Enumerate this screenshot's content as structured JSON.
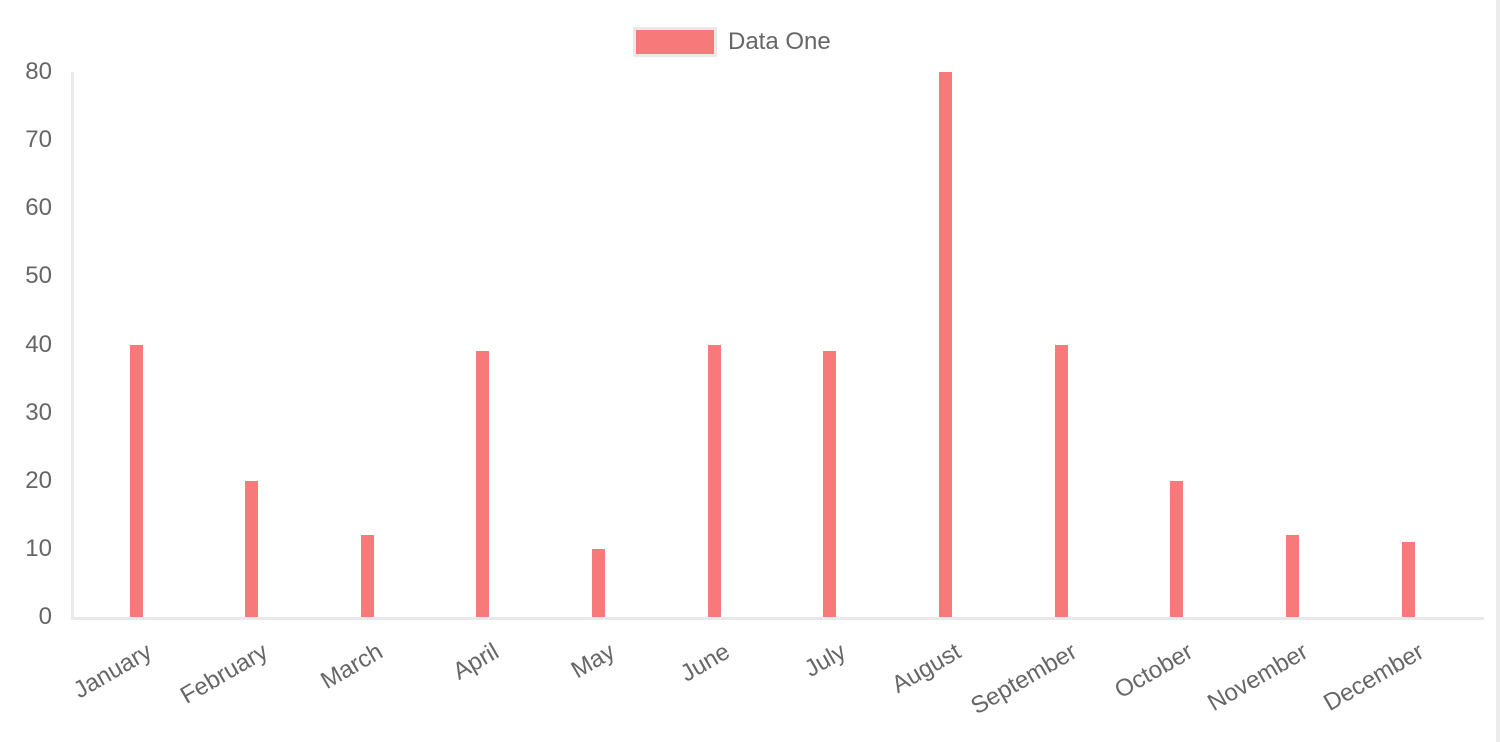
{
  "legend": {
    "label": "Data One"
  },
  "colors": {
    "bar": "#f87979",
    "tick_label": "#666666",
    "axis_line": "#e9e9e9",
    "page_right_border": "#ececec"
  },
  "chart_data": {
    "type": "bar",
    "title": "",
    "xlabel": "",
    "ylabel": "",
    "categories": [
      "January",
      "February",
      "March",
      "April",
      "May",
      "June",
      "July",
      "August",
      "September",
      "October",
      "November",
      "December"
    ],
    "series": [
      {
        "name": "Data One",
        "color": "#f87979",
        "values": [
          40,
          20,
          12,
          39,
          10,
          40,
          39,
          80,
          40,
          20,
          12,
          11
        ]
      }
    ],
    "ylim": [
      0,
      80
    ],
    "yticks": [
      0,
      10,
      20,
      30,
      40,
      50,
      60,
      70,
      80
    ],
    "grid": false,
    "legend_position": "top",
    "x_label_rotation_deg": -30
  }
}
